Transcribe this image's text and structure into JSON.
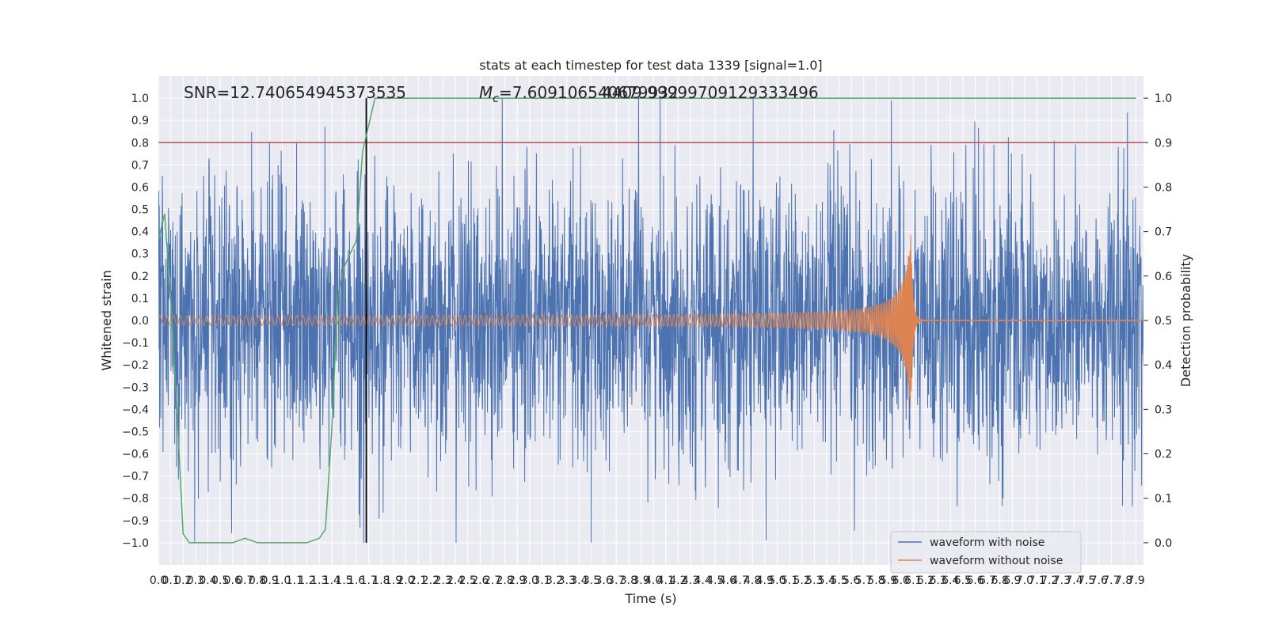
{
  "chart_data": {
    "type": "line",
    "title": "stats at each timestep for test data 1339 [signal=1.0]",
    "xlabel": "Time (s)",
    "ylabel": "Whitened strain",
    "ylabel_right": "Detection probability",
    "xlim": [
      0.0,
      7.96
    ],
    "ylim": [
      -1.1,
      1.1
    ],
    "ylim_right": [
      -0.05,
      1.05
    ],
    "x_tick_step": 0.1,
    "x_tick_max": 7.9,
    "y_tick_step": 0.1,
    "grid": true,
    "legend_placement": "bottom-right",
    "annotations": {
      "snr": "SNR=12.740654945373535",
      "mc_symbol": "M",
      "mc_sub": "c",
      "mc_value": "=7.609106540679932",
      "overlap": "4409.99999709129333496"
    },
    "threshold_line": {
      "y": 0.8,
      "color": "#c44e52"
    },
    "marker_line": {
      "x": 1.68,
      "color": "#000000"
    },
    "series": [
      {
        "name": "waveform with noise",
        "color": "#4c72b0",
        "description_kind": "noise",
        "envelope_abs_max": 1.0,
        "typical_abs": 0.35
      },
      {
        "name": "waveform without noise",
        "color": "#dd8452",
        "description_kind": "chirp",
        "start_amplitude": 0.02,
        "peak_amplitude": 0.42,
        "merger_time": 6.08,
        "x_range": [
          0.0,
          7.96
        ]
      },
      {
        "color": "#55a868",
        "axis": "right",
        "x": [
          0.0,
          0.05,
          0.1,
          0.15,
          0.2,
          0.25,
          0.3,
          0.35,
          0.4,
          0.5,
          0.6,
          0.7,
          0.8,
          0.9,
          1.0,
          1.1,
          1.2,
          1.3,
          1.35,
          1.4,
          1.45,
          1.5,
          1.55,
          1.6,
          1.65,
          1.7,
          1.75,
          1.8,
          1.85,
          1.9,
          2.0,
          3.0,
          4.0,
          5.0,
          6.0,
          7.0,
          7.9
        ],
        "values": [
          0.68,
          0.74,
          0.55,
          0.3,
          0.02,
          0.0,
          0.0,
          0.0,
          0.0,
          0.0,
          0.0,
          0.01,
          0.0,
          0.0,
          0.0,
          0.0,
          0.0,
          0.01,
          0.03,
          0.25,
          0.55,
          0.62,
          0.65,
          0.68,
          0.88,
          0.94,
          1.0,
          1.0,
          1.0,
          1.0,
          1.0,
          1.0,
          1.0,
          1.0,
          1.0,
          1.0,
          1.0
        ]
      }
    ]
  }
}
